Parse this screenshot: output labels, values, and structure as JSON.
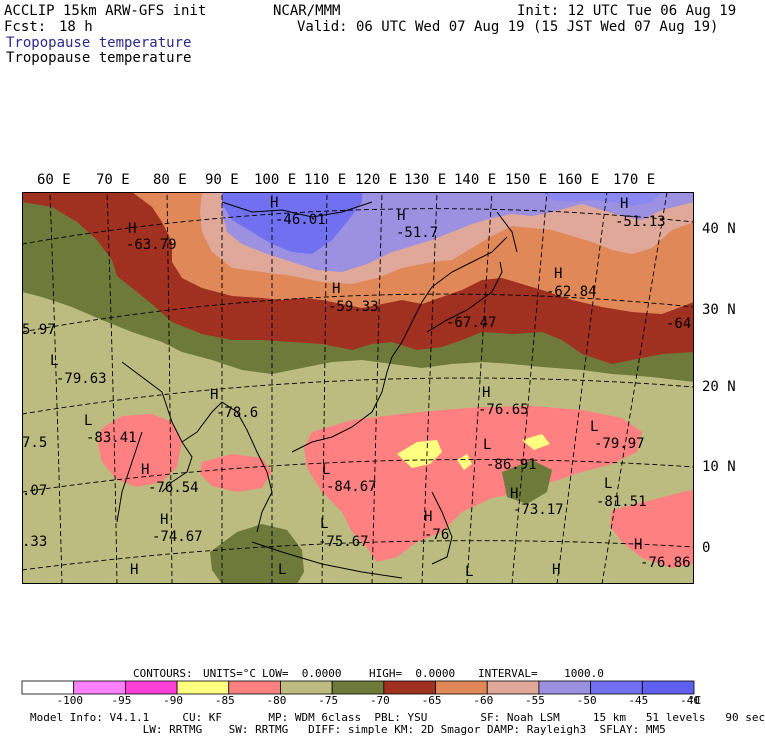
{
  "header": {
    "model": "ACCLIP 15km ARW-GFS init",
    "center": "NCAR/MMM",
    "init": "Init: 12 UTC Tue 06 Aug 19",
    "fcst_label": "Fcst:",
    "fcst_value": "18 h",
    "valid": "Valid: 06 UTC Wed 07 Aug 19 (15 JST Wed 07 Aug 19)",
    "field_blue": "Tropopause temperature",
    "field_black": "Tropopause temperature"
  },
  "map": {
    "lon_labels": [
      "60 E",
      "70 E",
      "80 E",
      "90 E",
      "100 E",
      "110 E",
      "120 E",
      "130 E",
      "140 E",
      "150 E",
      "160 E",
      "170 E"
    ],
    "lat_labels": [
      "40 N",
      "30 N",
      "20 N",
      "10 N",
      "0"
    ],
    "labels": [
      {
        "text": "H",
        "name": "high-marker"
      },
      {
        "text": "-63.79",
        "name": "value-label"
      },
      {
        "text": "H",
        "name": "high-marker"
      },
      {
        "text": "-46.01",
        "name": "value-label"
      },
      {
        "text": "H",
        "name": "high-marker"
      },
      {
        "text": "-51.7",
        "name": "value-label"
      },
      {
        "text": "H",
        "name": "high-marker"
      },
      {
        "text": "-51.13",
        "name": "value-label"
      },
      {
        "text": "H",
        "name": "high-marker"
      },
      {
        "text": "-59.33",
        "name": "value-label"
      },
      {
        "text": "H",
        "name": "high-marker"
      },
      {
        "text": "-62.84",
        "name": "value-label"
      },
      {
        "text": "-67.47",
        "name": "value-label"
      },
      {
        "text": "-64",
        "name": "value-label"
      },
      {
        "text": "5.97",
        "name": "value-label"
      },
      {
        "text": "L",
        "name": "low-marker"
      },
      {
        "text": "-79.63",
        "name": "value-label"
      },
      {
        "text": "H",
        "name": "high-marker"
      },
      {
        "text": "-78.6",
        "name": "value-label"
      },
      {
        "text": "L",
        "name": "low-marker"
      },
      {
        "text": "-83.41",
        "name": "value-label"
      },
      {
        "text": "7.5",
        "name": "value-label"
      },
      {
        "text": "H",
        "name": "high-marker"
      },
      {
        "text": "-76.65",
        "name": "value-label"
      },
      {
        "text": "L",
        "name": "low-marker"
      },
      {
        "text": "-86.91",
        "name": "value-label"
      },
      {
        "text": "L",
        "name": "low-marker"
      },
      {
        "text": "-79.97",
        "name": "value-label"
      },
      {
        "text": "H",
        "name": "high-marker"
      },
      {
        "text": "-76.54",
        "name": "value-label"
      },
      {
        "text": "L",
        "name": "low-marker"
      },
      {
        "text": "-84.67",
        "name": "value-label"
      },
      {
        "text": ".07",
        "name": "value-label"
      },
      {
        "text": "H",
        "name": "high-marker"
      },
      {
        "text": "-73.17",
        "name": "value-label"
      },
      {
        "text": "L",
        "name": "low-marker"
      },
      {
        "text": "-81.51",
        "name": "value-label"
      },
      {
        "text": "H",
        "name": "high-marker"
      },
      {
        "text": "-74.67",
        "name": "value-label"
      },
      {
        "text": "L",
        "name": "low-marker"
      },
      {
        "text": "-75.67",
        "name": "value-label"
      },
      {
        "text": "H",
        "name": "high-marker"
      },
      {
        "text": "-76",
        "name": "value-label"
      },
      {
        "text": ".33",
        "name": "value-label"
      },
      {
        "text": "H",
        "name": "high-marker"
      },
      {
        "text": "-76.86",
        "name": "value-label"
      },
      {
        "text": "L",
        "name": "low-marker"
      },
      {
        "text": "H",
        "name": "high-marker"
      },
      {
        "text": "L",
        "name": "low-marker"
      },
      {
        "text": "H",
        "name": "high-marker"
      }
    ]
  },
  "contour_info": {
    "contours": "CONTOURS:",
    "units": "UNITS=°C",
    "low": "LOW=  0.0000",
    "high": "HIGH=  0.0000",
    "interval": "INTERVAL=    1000.0"
  },
  "colorbar": {
    "colors": [
      "#ffffff",
      "#ff80ff",
      "#ff40d8",
      "#ffff80",
      "#ff8080",
      "#bcbc80",
      "#6e7a3a",
      "#a03020",
      "#e08858",
      "#e0a898",
      "#9c90e0",
      "#7070f0",
      "#6060f0"
    ],
    "ticks": [
      "-100",
      "-95",
      "-90",
      "-85",
      "-80",
      "-75",
      "-70",
      "-65",
      "-60",
      "-55",
      "-50",
      "-45",
      "-40",
      "°C"
    ]
  },
  "footer": {
    "line1": "Model Info: V4.1.1     CU: KF       MP: WDM 6class  PBL: YSU        SF: Noah LSM     15 km   51 levels   90 sec",
    "line2": "                 LW: RRTMG    SW: RRTMG   DIFF: simple KM: 2D Smagor DAMP: Rayleigh3  SFLAY: MM5"
  }
}
